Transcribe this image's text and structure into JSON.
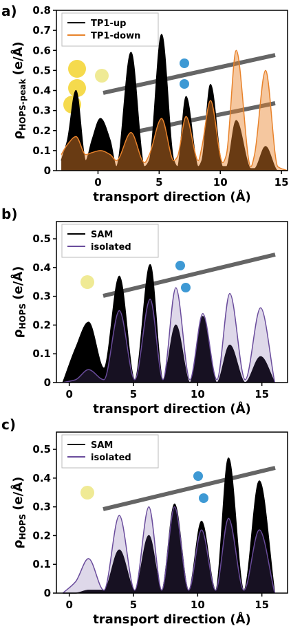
{
  "chart_data": [
    {
      "type": "area",
      "panel_label": "a)",
      "xlabel": "transport direction (Å)",
      "ylabel": [
        "ρ",
        "HOPS-peak",
        "(e/Å)"
      ],
      "x": [
        -3,
        -2.5,
        -1.8,
        -1,
        -0.5,
        0.2,
        1,
        1.5,
        2.7,
        3.8,
        4.2,
        5.2,
        6.2,
        6.5,
        7.2,
        8.2,
        8.5,
        9.2,
        10.2,
        10.5,
        11.3,
        12.5,
        12.8,
        13.7,
        14.7,
        15.5
      ],
      "series": [
        {
          "name": "TP1-up",
          "color": "#000000",
          "values": [
            0.05,
            0.15,
            0.4,
            0.05,
            0.15,
            0.26,
            0.15,
            0.02,
            0.59,
            0.02,
            0.05,
            0.68,
            0.05,
            0.02,
            0.37,
            0.02,
            0.05,
            0.43,
            0.02,
            0.02,
            0.25,
            0.01,
            0.01,
            0.12,
            0,
            0
          ]
        },
        {
          "name": "TP1-down",
          "color": "#e8822a",
          "values": [
            0.08,
            0.13,
            0.17,
            0.08,
            0.09,
            0.1,
            0.08,
            0.05,
            0.19,
            0.04,
            0.08,
            0.26,
            0.05,
            0.07,
            0.27,
            0.05,
            0.12,
            0.35,
            0.04,
            0.08,
            0.6,
            0.02,
            0.08,
            0.5,
            0.02,
            0
          ]
        }
      ],
      "xlim": [
        -3.4,
        15.5
      ],
      "xticks": [
        0,
        5,
        10,
        15
      ],
      "ylim": [
        0,
        0.8
      ],
      "yticks": [
        0,
        0.1,
        0.2,
        0.3,
        0.4,
        0.5,
        0.6,
        0.7,
        0.8
      ],
      "legend": "upper left"
    },
    {
      "type": "area",
      "panel_label": "b)",
      "xlabel": "transport direction (Å)",
      "ylabel": [
        "ρ",
        "HOPS",
        "(e/Å)"
      ],
      "x": [
        -0.5,
        0.5,
        1.5,
        2.7,
        3.9,
        5.1,
        6.3,
        7.3,
        8.3,
        9.4,
        10.4,
        11.5,
        12.5,
        13.7,
        14.9,
        16
      ],
      "series": [
        {
          "name": "SAM",
          "color": "#000000",
          "values": [
            0,
            0.12,
            0.21,
            0.05,
            0.37,
            0.01,
            0.41,
            0.01,
            0.2,
            0,
            0.23,
            0,
            0.13,
            0,
            0.09,
            0
          ]
        },
        {
          "name": "isolated",
          "color": "#6a4c9c",
          "values": [
            0,
            0.01,
            0.045,
            0.01,
            0.25,
            0.01,
            0.29,
            0.01,
            0.33,
            0.01,
            0.24,
            0.01,
            0.31,
            0.01,
            0.26,
            0
          ]
        }
      ],
      "xlim": [
        -1,
        17
      ],
      "xticks": [
        0,
        5,
        10,
        15
      ],
      "ylim": [
        0,
        0.56
      ],
      "yticks": [
        0,
        0.1,
        0.2,
        0.3,
        0.4,
        0.5
      ],
      "legend": "upper left"
    },
    {
      "type": "area",
      "panel_label": "c)",
      "xlabel": "transport direction (Å)",
      "ylabel": [
        "ρ",
        "HOPS",
        "(e/Å)"
      ],
      "x": [
        -0.5,
        0.5,
        1.5,
        2.7,
        3.9,
        5.1,
        6.2,
        7.2,
        8.2,
        9.3,
        10.3,
        11.4,
        12.4,
        13.6,
        14.8,
        16
      ],
      "series": [
        {
          "name": "SAM",
          "color": "#000000",
          "values": [
            0,
            0,
            0.01,
            0.01,
            0.15,
            0.01,
            0.2,
            0.01,
            0.31,
            0.01,
            0.25,
            0.01,
            0.47,
            0.01,
            0.39,
            0
          ]
        },
        {
          "name": "isolated",
          "color": "#6a4c9c",
          "values": [
            0,
            0.04,
            0.12,
            0.01,
            0.27,
            0.01,
            0.3,
            0.01,
            0.3,
            0.01,
            0.22,
            0.01,
            0.26,
            0.01,
            0.22,
            0
          ]
        }
      ],
      "xlim": [
        -1,
        17
      ],
      "xticks": [
        0,
        5,
        10,
        15
      ],
      "ylim": [
        0,
        0.56
      ],
      "yticks": [
        0,
        0.1,
        0.2,
        0.3,
        0.4,
        0.5
      ],
      "legend": "upper left"
    }
  ]
}
